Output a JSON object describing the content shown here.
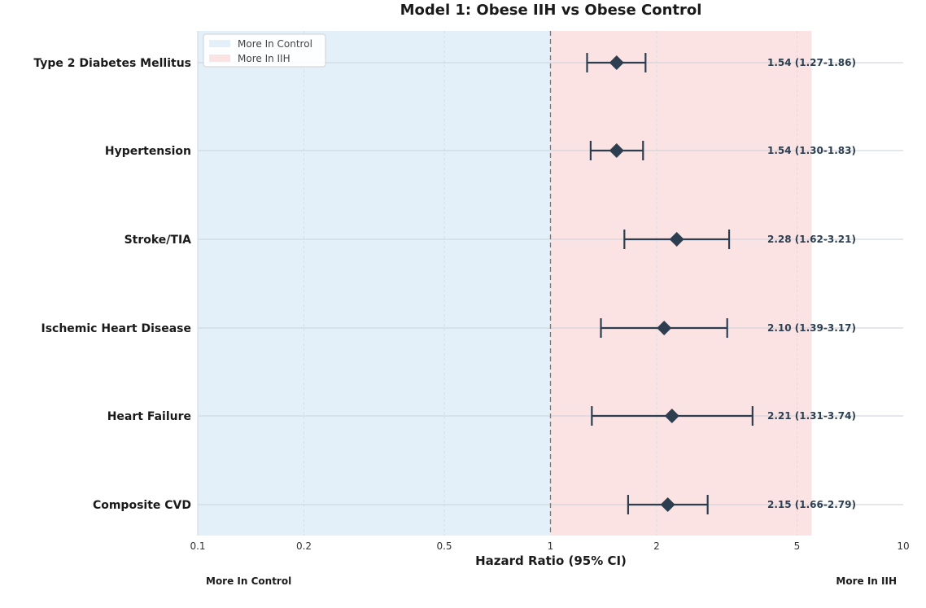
{
  "chart_data": {
    "type": "forest",
    "title": "Model 1: Obese IIH vs Obese Control",
    "xlabel": "Hazard Ratio (95% CI)",
    "x_scale": "log",
    "xlim": [
      0.1,
      10
    ],
    "x_ticks": [
      0.1,
      0.2,
      0.5,
      1,
      2,
      5,
      10
    ],
    "x_tick_labels": [
      "0.1",
      "0.2",
      "0.5",
      "1",
      "2",
      "5",
      "10"
    ],
    "reference_line": 1,
    "shaded_regions": [
      {
        "label": "More In Control",
        "from": 0.1,
        "to": 1,
        "color": "#e3f0fa"
      },
      {
        "label": "More In IIH",
        "from": 1,
        "to": 5.5,
        "color": "#fbe3e3"
      }
    ],
    "rows": [
      {
        "label": "Type 2 Diabetes Mellitus",
        "hr": 1.54,
        "lo": 1.27,
        "hi": 1.86,
        "text": "1.54 (1.27-1.86)"
      },
      {
        "label": "Hypertension",
        "hr": 1.54,
        "lo": 1.3,
        "hi": 1.83,
        "text": "1.54 (1.30-1.83)"
      },
      {
        "label": "Stroke/TIA",
        "hr": 2.28,
        "lo": 1.62,
        "hi": 3.21,
        "text": "2.28 (1.62-3.21)"
      },
      {
        "label": "Ischemic Heart Disease",
        "hr": 2.1,
        "lo": 1.39,
        "hi": 3.17,
        "text": "2.10 (1.39-3.17)"
      },
      {
        "label": "Heart Failure",
        "hr": 2.21,
        "lo": 1.31,
        "hi": 3.74,
        "text": "2.21 (1.31-3.74)"
      },
      {
        "label": "Composite CVD",
        "hr": 2.15,
        "lo": 1.66,
        "hi": 2.79,
        "text": "2.15 (1.66-2.79)"
      }
    ],
    "legend": {
      "placement": "top-left",
      "items": [
        "More In Control",
        "More In IIH"
      ]
    },
    "annotations": {
      "left": "More In Control",
      "right": "More In IIH"
    },
    "marker_color": "#2c3e50"
  }
}
